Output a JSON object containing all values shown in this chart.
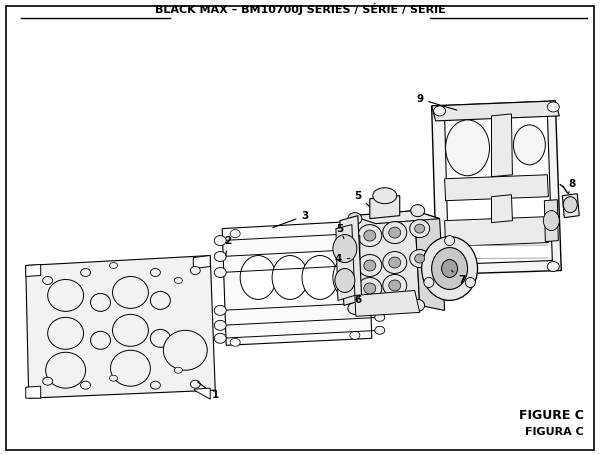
{
  "title": "BLACK MAX – BM10700J SERIES / SÉRIE / SERIE",
  "figure_label": "FIGURE C",
  "figura_label": "FIGURA C",
  "bg_color": "#ffffff",
  "border_color": "#000000",
  "line_color": "#000000",
  "fill_light": "#f2f2f2",
  "fill_mid": "#e8e8e8",
  "fill_dark": "#d8d8d8",
  "title_fontsize": 8.0,
  "label_fontsize": 7.5,
  "figure_label_fontsize": 9
}
